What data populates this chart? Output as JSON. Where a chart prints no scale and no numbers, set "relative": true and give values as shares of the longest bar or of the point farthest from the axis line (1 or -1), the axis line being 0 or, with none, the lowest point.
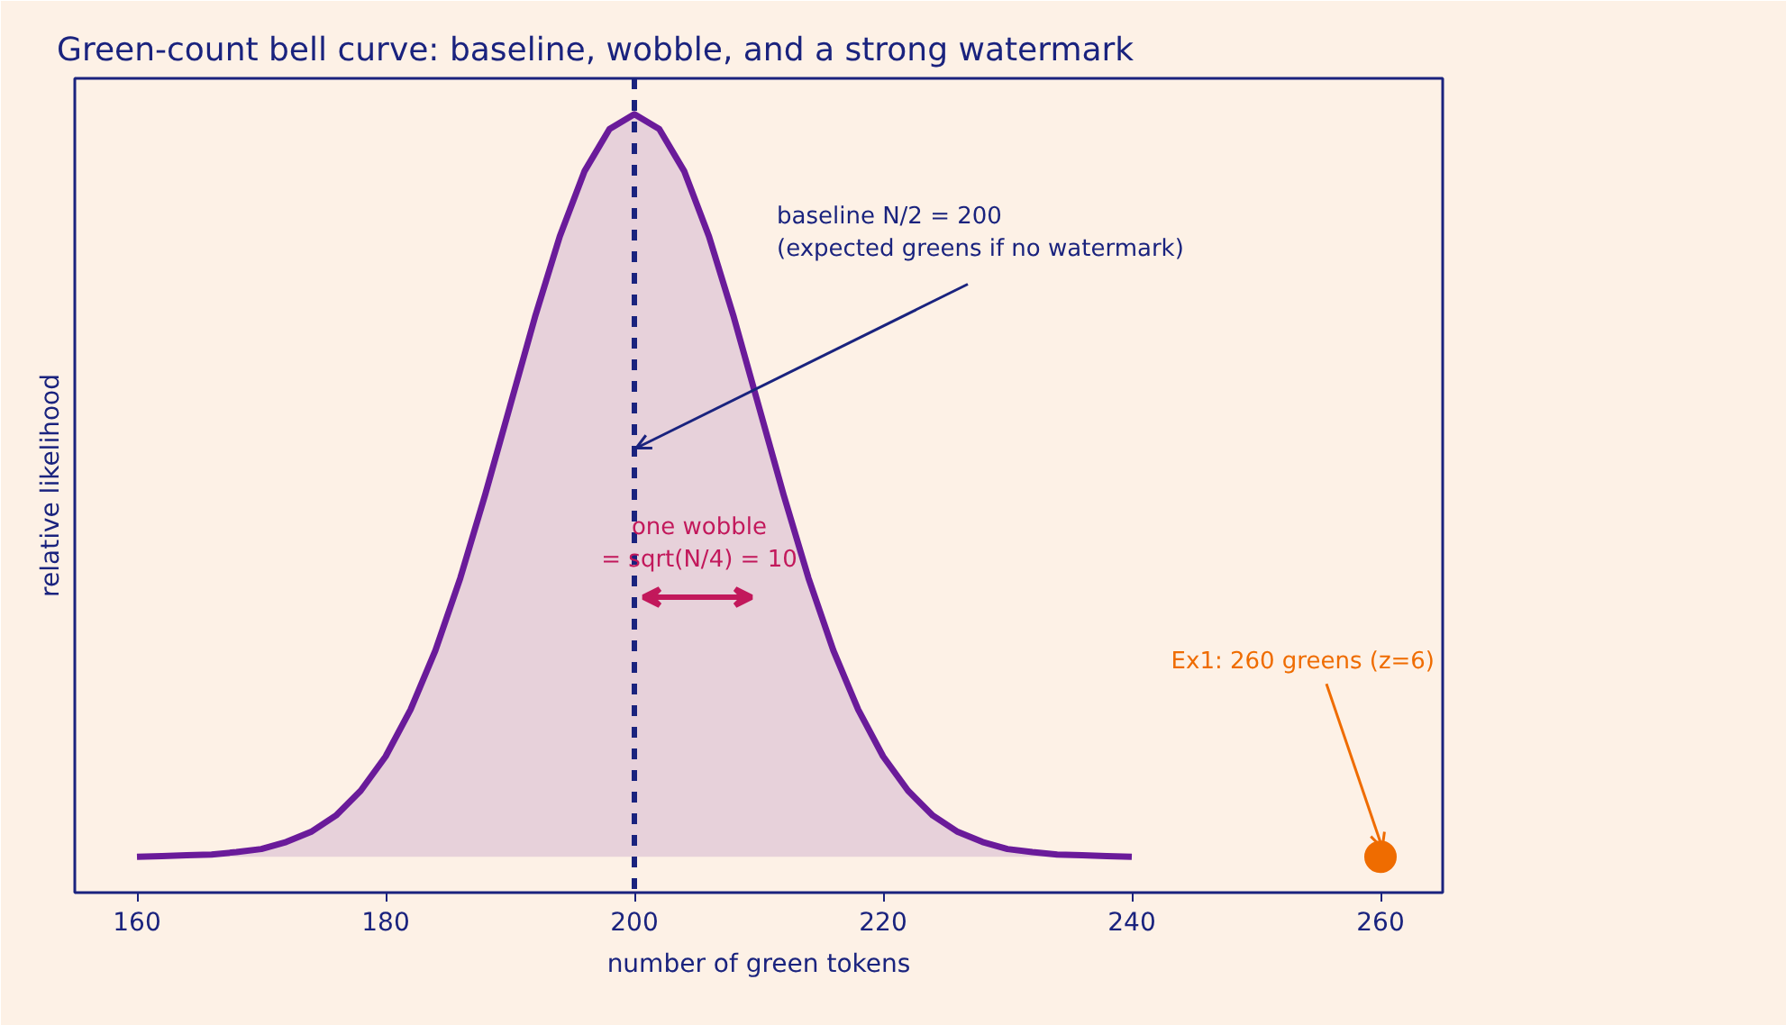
{
  "chart_data": {
    "type": "area",
    "title": "Green-count bell curve: baseline, wobble, and a strong watermark",
    "xlabel": "number of green tokens",
    "ylabel": "relative likelihood",
    "relative": true,
    "xlim": [
      155,
      265
    ],
    "xticks": [
      160,
      180,
      200,
      220,
      240,
      260
    ],
    "series": [
      {
        "color": "#6a1b9a",
        "x": [
          160,
          162,
          164,
          166,
          168,
          170,
          172,
          174,
          176,
          178,
          180,
          182,
          184,
          186,
          188,
          190,
          192,
          194,
          196,
          198,
          200,
          202,
          204,
          206,
          208,
          210,
          212,
          214,
          216,
          218,
          220,
          222,
          224,
          226,
          228,
          230,
          232,
          234,
          236,
          238,
          240
        ],
        "values": [
          0.046,
          0.047,
          0.048,
          0.049,
          0.052,
          0.056,
          0.065,
          0.078,
          0.099,
          0.131,
          0.175,
          0.235,
          0.311,
          0.404,
          0.511,
          0.625,
          0.739,
          0.843,
          0.927,
          0.981,
          1,
          0.981,
          0.927,
          0.843,
          0.739,
          0.625,
          0.511,
          0.404,
          0.311,
          0.235,
          0.175,
          0.131,
          0.099,
          0.078,
          0.065,
          0.056,
          0.052,
          0.049,
          0.048,
          0.047,
          0.046
        ]
      },
      {
        "type": "scatter",
        "color": "#ef6c00",
        "x": [
          260
        ],
        "values": [
          0.046
        ],
        "marker": "circle"
      }
    ],
    "ref_lines": [
      {
        "axis": "x",
        "value": 200,
        "color": "#1a237e",
        "line_style": "dashed"
      }
    ],
    "annotations": [
      {
        "text": "baseline N/2 = 200\n(expected greens if no watermark)",
        "x": 200,
        "y": 0.571
      },
      "one wobble\n= sqrt(N/4) = 10",
      {
        "text": "Ex1: 260 greens (z=6)",
        "x": 260,
        "y": 0.046
      }
    ],
    "grid": false
  }
}
